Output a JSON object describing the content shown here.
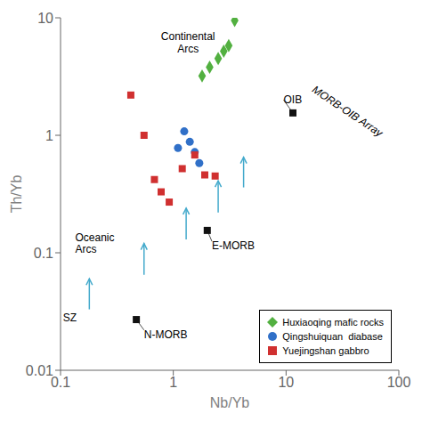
{
  "chart_data": {
    "type": "scatter",
    "xlabel": "Nb/Yb",
    "ylabel": "Th/Yb",
    "log": true,
    "xlim": [
      0.1,
      100
    ],
    "ylim": [
      0.01,
      10
    ],
    "xticks": [
      0.1,
      1,
      10,
      100
    ],
    "yticks": [
      0.01,
      0.1,
      1,
      10
    ],
    "legend": "lower right",
    "series": [
      {
        "name": "Huxiaoqing mafic rocks",
        "color": "#52b040",
        "marker": "diamond",
        "x": [
          1.8,
          2.1,
          2.5,
          2.8,
          3.1,
          3.5
        ],
        "values": [
          3.2,
          3.8,
          4.5,
          5.2,
          5.8,
          9.5
        ]
      },
      {
        "name": "Qingshuiquan  diabase",
        "color": "#3070c8",
        "marker": "circle",
        "x": [
          1.1,
          1.25,
          1.4,
          1.55,
          1.7
        ],
        "values": [
          0.78,
          1.08,
          0.88,
          0.72,
          0.58
        ]
      },
      {
        "name": "Yuejingshan gabbro",
        "color": "#d03030",
        "marker": "square",
        "x": [
          0.42,
          0.55,
          0.68,
          0.78,
          0.92,
          1.2,
          1.55,
          1.9,
          2.35
        ],
        "values": [
          2.2,
          1.0,
          0.42,
          0.33,
          0.27,
          0.52,
          0.68,
          0.46,
          0.45
        ]
      }
    ],
    "reference_points": {
      "color": "#111111",
      "marker": "square",
      "points": [
        {
          "name": "N-MORB",
          "x": 0.47,
          "y": 0.027,
          "label_x": 0.55,
          "label_y": 0.022
        },
        {
          "name": "E-MORB",
          "x": 2.0,
          "y": 0.155,
          "label_x": 2.2,
          "label_y": 0.125
        },
        {
          "name": "OIB",
          "x": 11.5,
          "y": 1.55,
          "label_x": 9.5,
          "label_y": 2.0
        }
      ]
    },
    "arrows": {
      "color": "#44aacc",
      "segments": [
        {
          "x": 0.18,
          "y": 0.033,
          "x2": 0.18,
          "y2": 0.06
        },
        {
          "x": 0.55,
          "y": 0.065,
          "x2": 0.55,
          "y2": 0.12
        },
        {
          "x": 1.3,
          "y": 0.13,
          "x2": 1.3,
          "y2": 0.24
        },
        {
          "x": 2.5,
          "y": 0.22,
          "x2": 2.5,
          "y2": 0.41
        },
        {
          "x": 4.2,
          "y": 0.36,
          "x2": 4.2,
          "y2": 0.65
        }
      ]
    },
    "annotations": [
      {
        "text": "SZ",
        "x": 0.105,
        "y": 0.028
      },
      {
        "text": "Oceanic\nArcs",
        "x": 0.135,
        "y": 0.12
      },
      {
        "text": "Continental\nArcs",
        "x": 1.35,
        "y": 7.5
      },
      {
        "text": "MORB-OIB Array",
        "x": 35,
        "y": 1.6
      }
    ]
  }
}
